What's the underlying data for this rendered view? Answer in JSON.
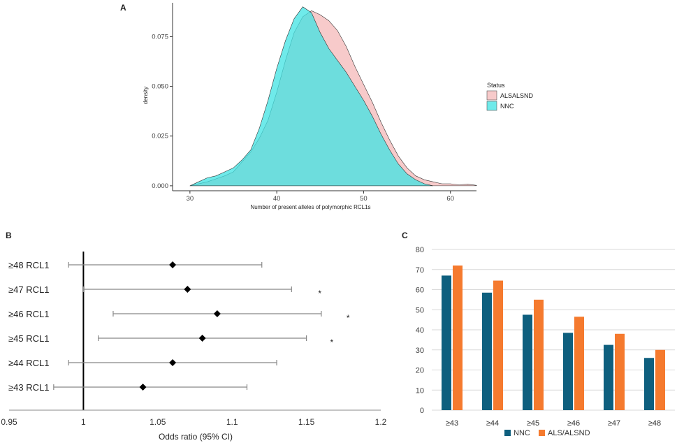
{
  "panels": {
    "a": "A",
    "b": "B",
    "c": "C"
  },
  "chart_data": [
    {
      "type": "area",
      "panel": "A",
      "xlabel": "Number of present alleles of polymorphic RCL1s",
      "ylabel": "density",
      "xlim": [
        28,
        63
      ],
      "ylim": [
        -0.0025,
        0.092
      ],
      "xticks": [
        30,
        40,
        50,
        60
      ],
      "yticks": [
        0.0,
        0.025,
        0.05,
        0.075
      ],
      "ytick_labels": [
        "0.000",
        "0.025",
        "0.050",
        "0.075"
      ],
      "legend": {
        "title": "Status",
        "entries": [
          "ALSALSND",
          "NNC"
        ],
        "position": "right"
      },
      "series": [
        {
          "name": "ALSALSND",
          "color": "#F4B8B8",
          "x": [
            30,
            32,
            34,
            35,
            36,
            37,
            38,
            39,
            40,
            41,
            42,
            43,
            44,
            45,
            46,
            47,
            48,
            49,
            50,
            51,
            52,
            53,
            54,
            55,
            56,
            57,
            58,
            59,
            60,
            61,
            62,
            63
          ],
          "y": [
            0.0,
            0.002,
            0.005,
            0.007,
            0.012,
            0.017,
            0.024,
            0.033,
            0.047,
            0.063,
            0.077,
            0.085,
            0.088,
            0.086,
            0.083,
            0.078,
            0.07,
            0.06,
            0.051,
            0.042,
            0.032,
            0.023,
            0.015,
            0.009,
            0.005,
            0.003,
            0.002,
            0.001,
            0.001,
            0.0005,
            0.0008,
            0.0002
          ]
        },
        {
          "name": "NNC",
          "color": "#3FE3E3",
          "x": [
            30,
            31,
            32,
            33,
            34,
            35,
            36,
            37,
            38,
            39,
            40,
            41,
            42,
            43,
            44,
            45,
            46,
            47,
            48,
            49,
            50,
            51,
            52,
            53,
            54,
            55,
            56,
            57,
            58
          ],
          "y": [
            0.0,
            0.002,
            0.004,
            0.005,
            0.007,
            0.009,
            0.013,
            0.018,
            0.029,
            0.043,
            0.059,
            0.073,
            0.084,
            0.09,
            0.087,
            0.077,
            0.069,
            0.063,
            0.057,
            0.05,
            0.043,
            0.035,
            0.026,
            0.018,
            0.011,
            0.006,
            0.003,
            0.001,
            0.0
          ]
        }
      ]
    },
    {
      "type": "scatter",
      "panel": "B",
      "subtype": "forest",
      "xlabel": "Odds ratio (95% CI)",
      "xlim": [
        0.95,
        1.2
      ],
      "xticks": [
        0.95,
        1,
        1.05,
        1.1,
        1.15,
        1.2
      ],
      "xtick_labels": [
        "0.95",
        "1",
        "1.05",
        "1.1",
        "1.15",
        "1.2"
      ],
      "reference_line": 1,
      "rows": [
        {
          "label": "≥48 RCL1",
          "or": 1.06,
          "lo": 0.99,
          "hi": 1.12,
          "sig": ""
        },
        {
          "label": "≥47 RCL1",
          "or": 1.07,
          "lo": 1.0,
          "hi": 1.14,
          "sig": "*"
        },
        {
          "label": "≥46 RCL1",
          "or": 1.09,
          "lo": 1.02,
          "hi": 1.16,
          "sig": "*"
        },
        {
          "label": "≥45 RCL1",
          "or": 1.08,
          "lo": 1.01,
          "hi": 1.15,
          "sig": "*"
        },
        {
          "label": "≥44 RCL1",
          "or": 1.06,
          "lo": 0.99,
          "hi": 1.13,
          "sig": ""
        },
        {
          "label": "≥43 RCL1",
          "or": 1.04,
          "lo": 0.98,
          "hi": 1.11,
          "sig": ""
        }
      ],
      "sig_x": [
        1.159,
        1.178,
        1.167
      ]
    },
    {
      "type": "bar",
      "panel": "C",
      "categories": [
        "≥43",
        "≥44",
        "≥45",
        "≥46",
        "≥47",
        "≥48"
      ],
      "ylim": [
        0,
        80
      ],
      "yticks": [
        0,
        10,
        20,
        30,
        40,
        50,
        60,
        70,
        80
      ],
      "ytick_labels": [
        "0",
        "10",
        "20",
        "30",
        "40",
        "50",
        "60",
        "70",
        "80"
      ],
      "series": [
        {
          "name": "NNC",
          "color": "#0E5F7E",
          "values": [
            67,
            58.5,
            47.5,
            38.5,
            32.5,
            26
          ]
        },
        {
          "name": "ALS/ALSND",
          "color": "#F57A2E",
          "values": [
            72,
            64.5,
            55,
            46.5,
            38,
            30
          ]
        }
      ],
      "legend_position": "bottom"
    }
  ]
}
